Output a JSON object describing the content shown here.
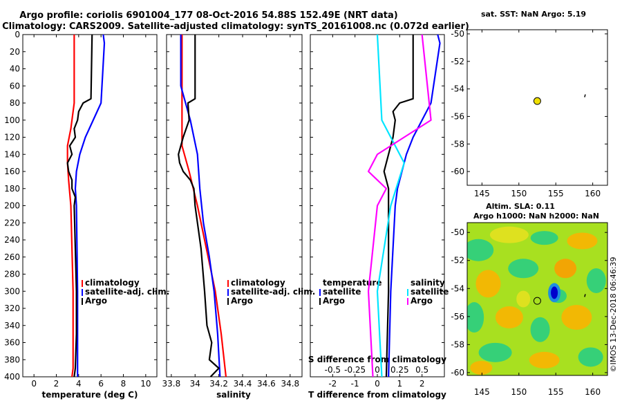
{
  "chart_data": {
    "type": "line",
    "title_line1": "Argo profile: coriolis 6901004_177 08-Oct-2016 54.88S 152.49E (NRT data)",
    "title_line2": "Climatology: CARS2009. Satellite-adjusted climatology: synTS_20161008.nc (0.072d earlier)",
    "depth_ticks": [
      "0",
      "20",
      "40",
      "60",
      "80",
      "100",
      "120",
      "140",
      "160",
      "180",
      "200",
      "220",
      "240",
      "260",
      "280",
      "300",
      "320",
      "340",
      "360",
      "380",
      "400"
    ],
    "ylim": [
      0,
      400
    ],
    "colors": {
      "climatology": "#ff0000",
      "satellite": "#0000ff",
      "argo": "#000000",
      "s_diff": "#ff00ff",
      "t_sat_diff": "#00e5ff"
    },
    "panels": [
      {
        "xlabel": "temperature (deg C)",
        "xlim": [
          -1,
          11
        ],
        "xticks": [
          "0",
          "2",
          "4",
          "6",
          "8",
          "10"
        ],
        "legend": [
          "climatology",
          "satellite-adj. clim.",
          "Argo"
        ],
        "series": [
          {
            "name": "climatology",
            "color": "#ff0000",
            "depth": [
              0,
              80,
              110,
              130,
              150,
              170,
              200,
              300,
              390,
              400
            ],
            "values": [
              3.6,
              3.6,
              3.3,
              3.0,
              3.0,
              3.1,
              3.3,
              3.5,
              3.5,
              3.4
            ]
          },
          {
            "name": "satellite-adj. clim.",
            "color": "#0000ff",
            "depth": [
              0,
              10,
              80,
              100,
              120,
              140,
              160,
              180,
              200,
              300,
              400
            ],
            "values": [
              6.2,
              6.3,
              6.0,
              5.3,
              4.6,
              4.1,
              3.8,
              3.7,
              3.8,
              3.9,
              3.9
            ]
          },
          {
            "name": "Argo",
            "color": "#000000",
            "depth": [
              0,
              75,
              80,
              90,
              100,
              110,
              120,
              130,
              140,
              150,
              160,
              170,
              180,
              190,
              200,
              250,
              300,
              350,
              390,
              400
            ],
            "values": [
              5.2,
              5.1,
              4.4,
              4.0,
              3.9,
              3.6,
              3.7,
              3.2,
              3.4,
              3.0,
              3.1,
              3.4,
              3.4,
              3.7,
              3.6,
              3.7,
              3.8,
              3.8,
              3.7,
              3.6
            ]
          }
        ]
      },
      {
        "xlabel": "salinity",
        "xlim": [
          33.76,
          34.9
        ],
        "xticks": [
          "33.8",
          "34",
          "34.2",
          "34.4",
          "34.6",
          "34.8"
        ],
        "legend": [
          "climatology",
          "satellite-adj. clim.",
          "Argo"
        ],
        "series": [
          {
            "name": "climatology",
            "color": "#ff0000",
            "depth": [
              0,
              130,
              160,
              200,
              240,
              300,
              350,
              400
            ],
            "values": [
              33.89,
              33.89,
              33.95,
              34.02,
              34.08,
              34.17,
              34.22,
              34.26
            ]
          },
          {
            "name": "satellite-adj. clim.",
            "color": "#0000ff",
            "depth": [
              0,
              60,
              100,
              140,
              180,
              220,
              260,
              300,
              350,
              400
            ],
            "values": [
              33.88,
              33.88,
              33.96,
              34.02,
              34.04,
              34.07,
              34.12,
              34.16,
              34.19,
              34.21
            ]
          },
          {
            "name": "Argo",
            "color": "#000000",
            "depth": [
              0,
              75,
              80,
              100,
              120,
              140,
              150,
              160,
              170,
              180,
              200,
              250,
              300,
              340,
              360,
              380,
              390,
              400
            ],
            "values": [
              34.0,
              34.0,
              33.94,
              33.95,
              33.9,
              33.86,
              33.87,
              33.9,
              33.96,
              33.99,
              34.0,
              34.05,
              34.08,
              34.1,
              34.14,
              34.12,
              34.2,
              34.13
            ]
          }
        ]
      },
      {
        "xlabel": "T difference from climatology",
        "xlim": [
          -3,
          3
        ],
        "xticks": [
          "-2",
          "-1",
          "0",
          "1",
          "2"
        ],
        "top_label": "S difference from climatology",
        "top_ticks": [
          "-0.5",
          "-0.25",
          "0",
          "0.25",
          "0.5"
        ],
        "legend_temperature": {
          "title": "temperature",
          "items": [
            "satellite",
            "Argo"
          ]
        },
        "legend_salinity": {
          "title": "salinity",
          "items": [
            "satellite",
            "Argo"
          ]
        },
        "series": [
          {
            "name": "T satellite",
            "color": "#0000ff",
            "depth": [
              0,
              10,
              80,
              100,
              120,
              140,
              160,
              180,
              200,
              300,
              400
            ],
            "values": [
              2.7,
              2.8,
              2.4,
              2.0,
              1.6,
              1.3,
              1.1,
              0.9,
              0.8,
              0.6,
              0.5
            ]
          },
          {
            "name": "T Argo",
            "color": "#000000",
            "depth": [
              0,
              75,
              80,
              90,
              100,
              120,
              140,
              160,
              180,
              200,
              300,
              400
            ],
            "values": [
              1.6,
              1.6,
              1.0,
              0.7,
              0.8,
              0.7,
              0.5,
              0.3,
              0.5,
              0.5,
              0.5,
              0.4
            ]
          },
          {
            "name": "S satellite",
            "color": "#00e5ff",
            "depth": [
              0,
              100,
              150,
              200,
              300,
              400
            ],
            "values": [
              0.0,
              0.05,
              0.3,
              0.15,
              0.0,
              0.05
            ]
          },
          {
            "name": "S Argo",
            "color": "#ff00ff",
            "depth": [
              0,
              100,
              140,
              160,
              180,
              200,
              300,
              400
            ],
            "values": [
              0.5,
              0.6,
              0.0,
              -0.1,
              0.1,
              0.0,
              -0.1,
              -0.05
            ]
          }
        ]
      }
    ],
    "map1": {
      "title": "sat. SST: NaN Argo: 5.19",
      "xticks": [
        "145",
        "150",
        "155",
        "160"
      ],
      "yticks": [
        "-50",
        "-52",
        "-54",
        "-56",
        "-58",
        "-60"
      ],
      "xlim": [
        143,
        162
      ],
      "ylim": [
        -61,
        -49.7
      ],
      "argo_lon": 152.49,
      "argo_lat": -54.88,
      "marker_color": "#f0e000"
    },
    "map2": {
      "title_line1": "Altim. SLA: 0.11",
      "title_line2": "Argo h1000: NaN h2000: NaN",
      "xticks": [
        "145",
        "150",
        "155",
        "160"
      ],
      "yticks": [
        "-50",
        "-52",
        "-54",
        "-56",
        "-58",
        "-60"
      ],
      "xlim": [
        143,
        162
      ],
      "ylim": [
        -60.2,
        -49.3
      ],
      "argo_lon": 152.49,
      "argo_lat": -54.88
    },
    "watermark": "©IMOS 13-Dec-2018 06:46:39"
  }
}
